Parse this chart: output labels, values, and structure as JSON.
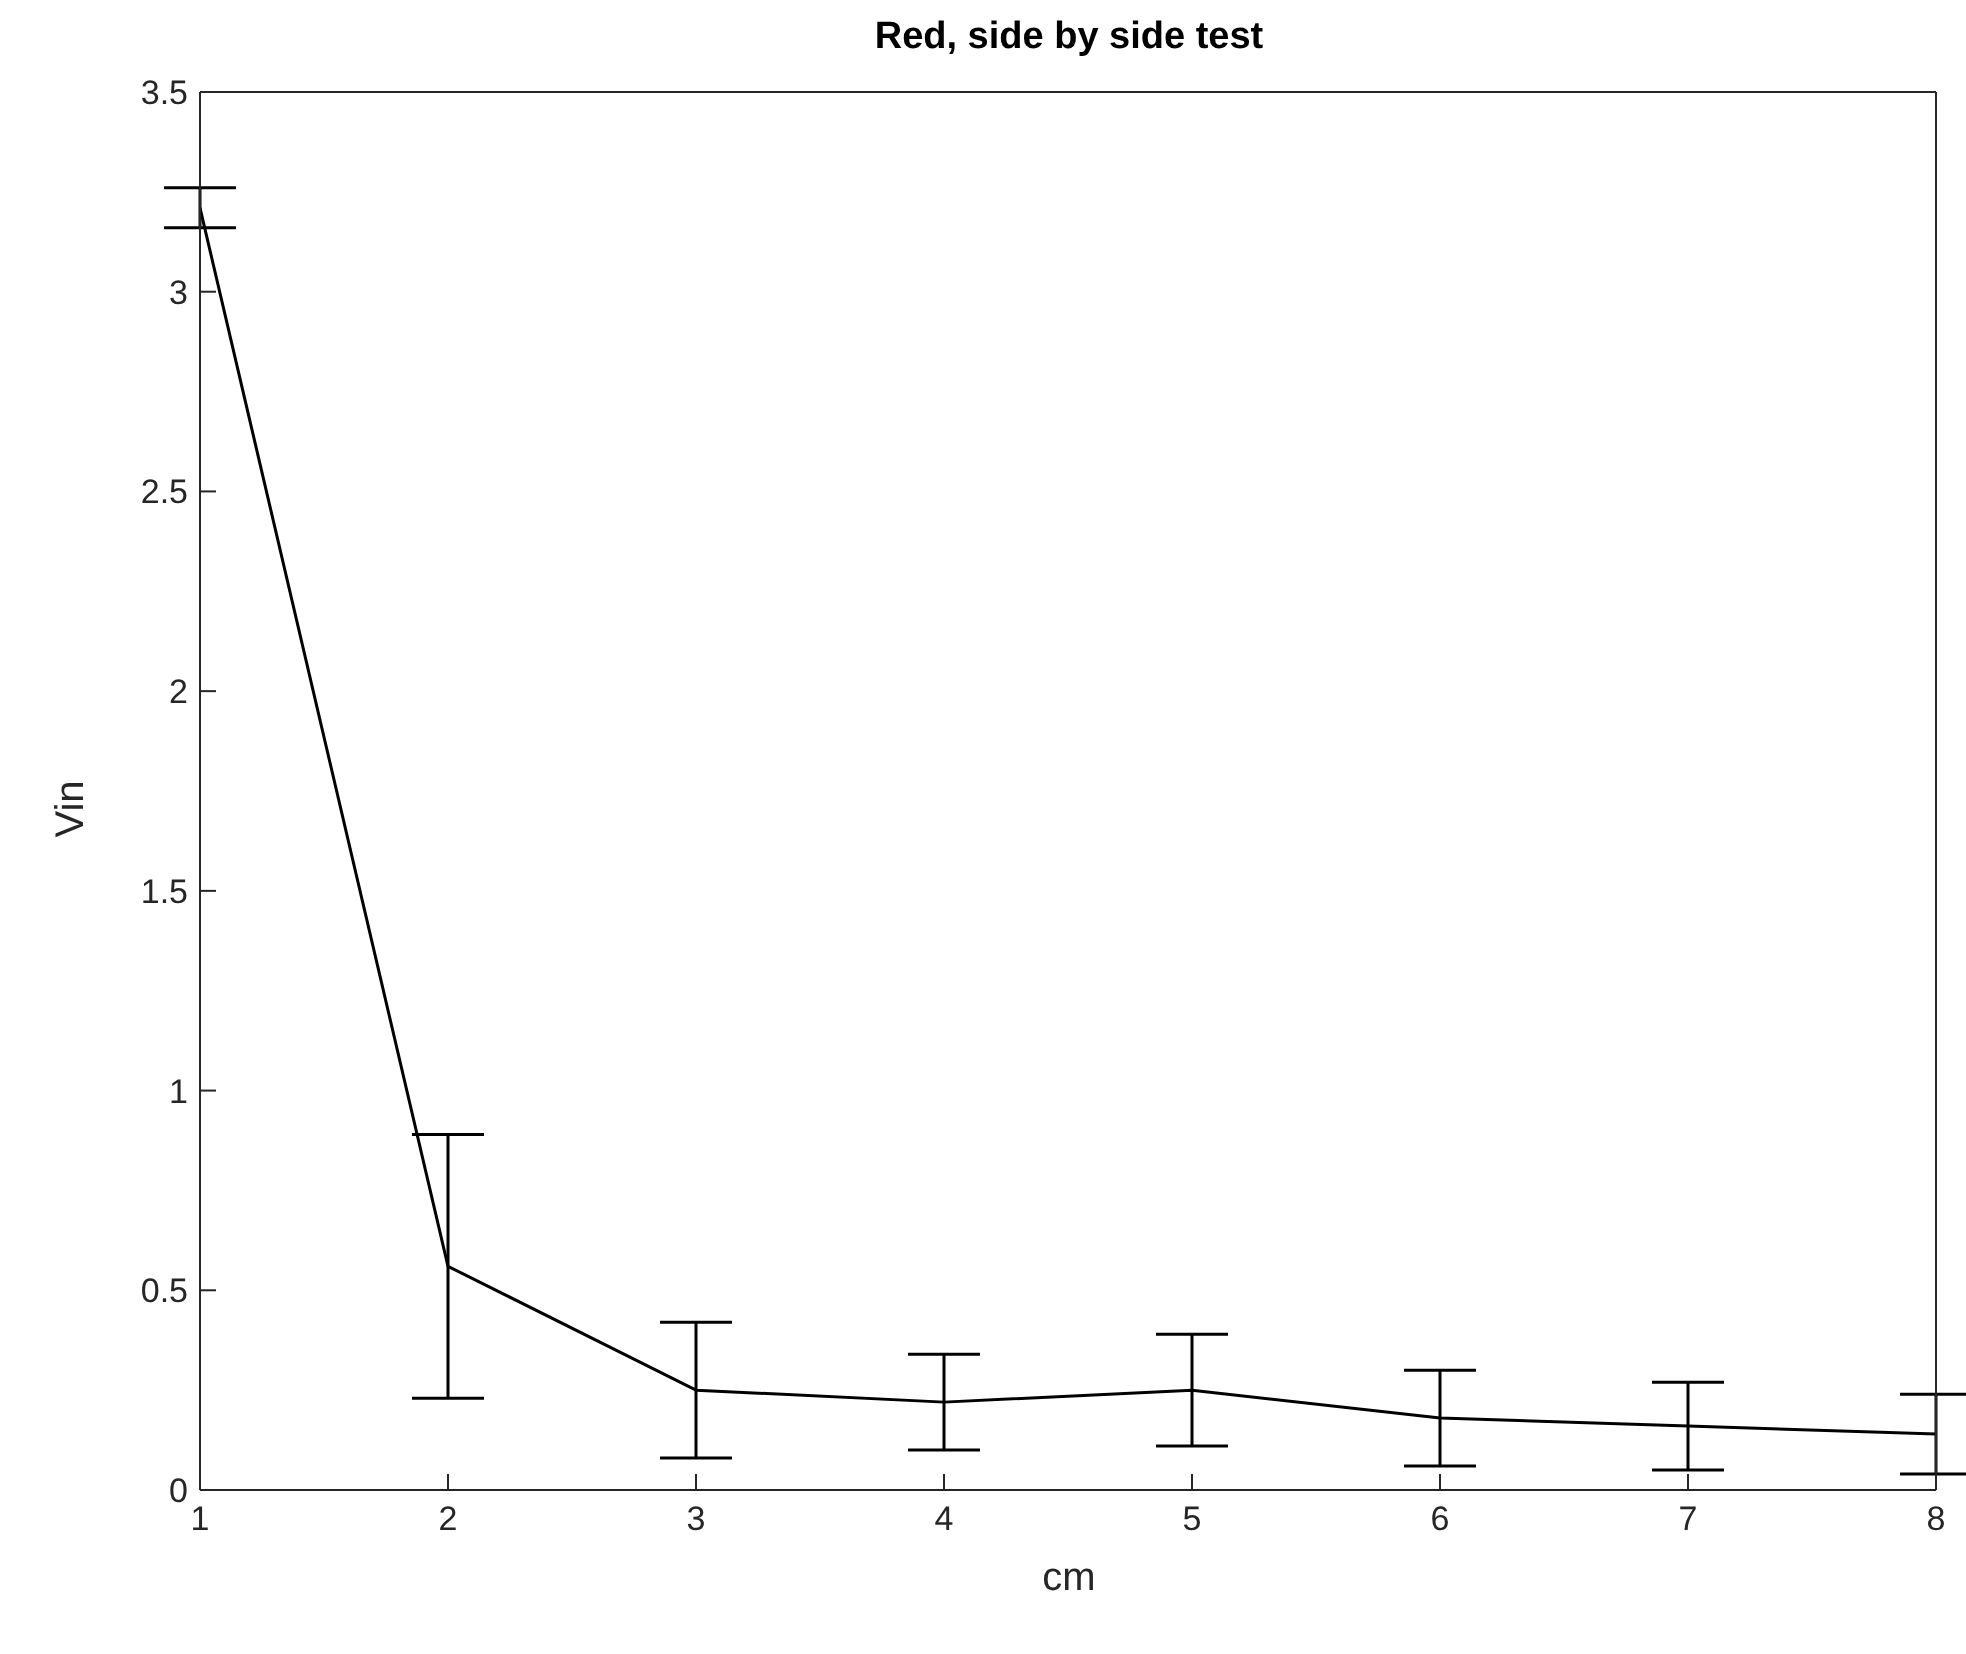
{
  "chart_data": {
    "type": "line",
    "title": "Red, side by side test",
    "xlabel": "cm",
    "ylabel": "Vin",
    "x": [
      1,
      2,
      3,
      4,
      5,
      6,
      7,
      8
    ],
    "series": [
      {
        "color": "#000000",
        "values": [
          3.21,
          0.56,
          0.25,
          0.22,
          0.25,
          0.18,
          0.16,
          0.14
        ],
        "errors": [
          0.05,
          0.33,
          0.17,
          0.12,
          0.14,
          0.12,
          0.11,
          0.1
        ]
      }
    ],
    "xlim": [
      1,
      8
    ],
    "xticks": [
      1,
      2,
      3,
      4,
      5,
      6,
      7,
      8
    ],
    "ylim": [
      0,
      3.5
    ],
    "yticks": [
      0,
      0.5,
      1,
      1.5,
      2,
      2.5,
      3,
      3.5
    ],
    "marker": "none",
    "line_style": "solid"
  }
}
